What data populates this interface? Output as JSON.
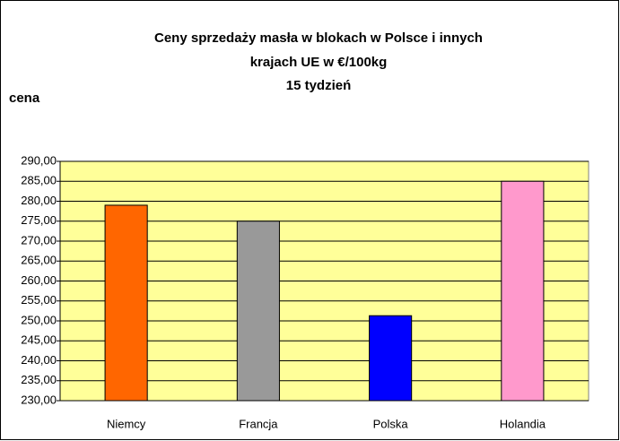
{
  "chart_data": {
    "type": "bar",
    "title": [
      "Ceny sprzedaży masła w blokach w Polsce i  innych",
      "krajach UE w €/100kg",
      "15 tydzień"
    ],
    "y_label": "cena",
    "categories": [
      "Niemcy",
      "Francja",
      "Polska",
      "Holandia"
    ],
    "values": [
      279,
      275,
      251.3,
      285
    ],
    "colors": [
      "#ff6600",
      "#999999",
      "#0000ff",
      "#ff99cc"
    ],
    "ylim": [
      230,
      290
    ],
    "yticks": [
      {
        "value": 230,
        "label": "230,00"
      },
      {
        "value": 235,
        "label": "235,00"
      },
      {
        "value": 240,
        "label": "240,00"
      },
      {
        "value": 245,
        "label": "245,00"
      },
      {
        "value": 250,
        "label": "250,00"
      },
      {
        "value": 255,
        "label": "255,00"
      },
      {
        "value": 260,
        "label": "260,00"
      },
      {
        "value": 265,
        "label": "265,00"
      },
      {
        "value": 270,
        "label": "270,00"
      },
      {
        "value": 275,
        "label": "275,00"
      },
      {
        "value": 280,
        "label": "280,00"
      },
      {
        "value": 285,
        "label": "285,00"
      },
      {
        "value": 290,
        "label": "290,00"
      }
    ],
    "grid": true
  }
}
